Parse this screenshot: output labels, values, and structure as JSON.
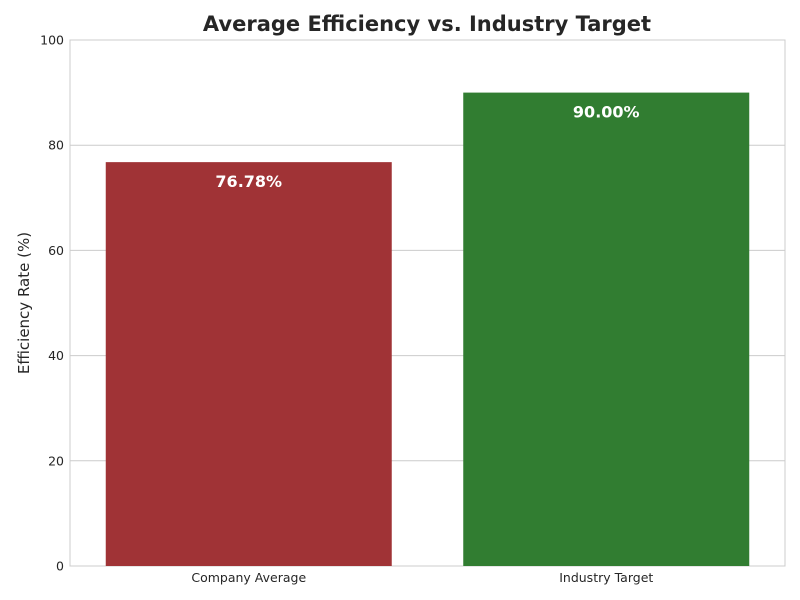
{
  "chart_data": {
    "type": "bar",
    "title": "Average Efficiency vs. Industry Target",
    "xlabel": "",
    "ylabel": "Efficiency Rate (%)",
    "categories": [
      "Company Average",
      "Industry Target"
    ],
    "values": [
      76.78,
      90.0
    ],
    "data_labels": [
      "76.78%",
      "90.00%"
    ],
    "colors": [
      "#a03336",
      "#317d31"
    ],
    "ylim": [
      0,
      100
    ],
    "yticks": [
      0,
      20,
      40,
      60,
      80,
      100
    ],
    "grid": "horizontal",
    "legend": "none"
  }
}
